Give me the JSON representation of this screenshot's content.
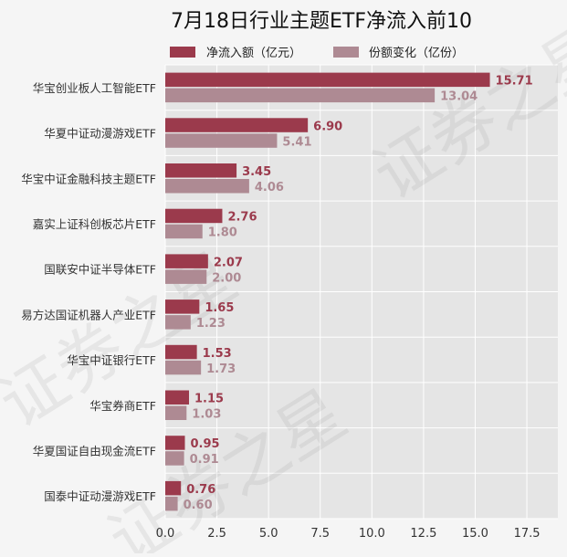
{
  "chart_data": {
    "type": "bar",
    "orientation": "horizontal",
    "title": "7月18日行业主题ETF净流入前10",
    "categories": [
      "华宝创业板人工智能ETF",
      "华夏中证动漫游戏ETF",
      "华宝中证金融科技主题ETF",
      "嘉实上证科创板芯片ETF",
      "国联安中证半导体ETF",
      "易方达国证机器人产业ETF",
      "华宝中证银行ETF",
      "华宝券商ETF",
      "华夏国证自由现金流ETF",
      "国泰中证动漫游戏ETF"
    ],
    "series": [
      {
        "name": "净流入额（亿元）",
        "color": "#9b3a4c",
        "values": [
          15.71,
          6.9,
          3.45,
          2.76,
          2.07,
          1.65,
          1.53,
          1.15,
          0.95,
          0.76
        ],
        "labels": [
          "15.71",
          "6.90",
          "3.45",
          "2.76",
          "2.07",
          "1.65",
          "1.53",
          "1.15",
          "0.95",
          "0.76"
        ]
      },
      {
        "name": "份额变化（亿份）",
        "color": "#ae8a93",
        "values": [
          13.04,
          5.41,
          4.06,
          1.8,
          2.0,
          1.23,
          1.73,
          1.03,
          0.91,
          0.6
        ],
        "labels": [
          "13.04",
          "5.41",
          "4.06",
          "1.80",
          "2.00",
          "1.23",
          "1.73",
          "1.03",
          "0.91",
          "0.60"
        ]
      }
    ],
    "xlim": [
      0,
      19
    ],
    "xticks": [
      0,
      2.5,
      5,
      7.5,
      10,
      12.5,
      15,
      17.5
    ],
    "xtick_labels": [
      "0.0",
      "2.5",
      "5.0",
      "7.5",
      "10.0",
      "12.5",
      "15.0",
      "17.5"
    ],
    "grid": true,
    "legend_position": "top",
    "watermark": "证券之星"
  }
}
